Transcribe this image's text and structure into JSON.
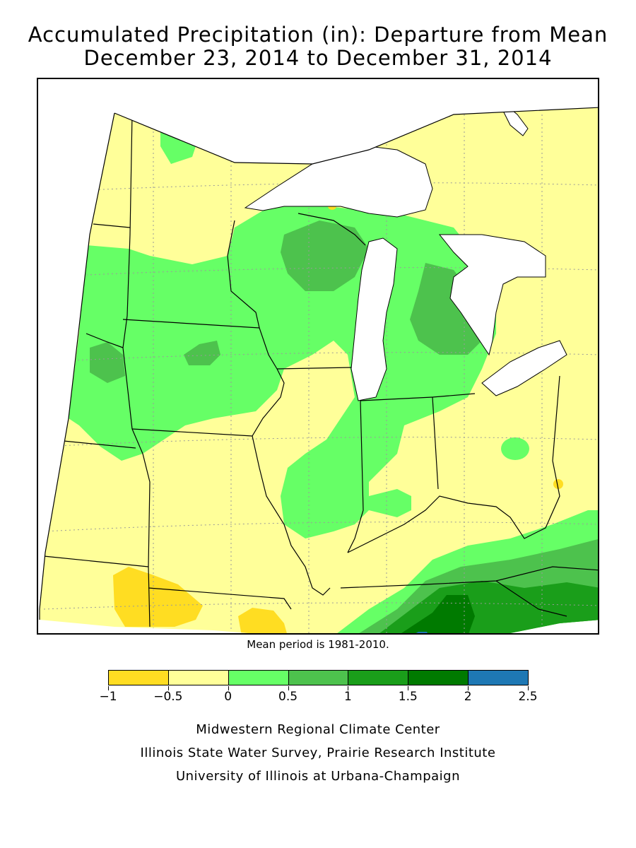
{
  "title_line1": "Accumulated Precipitation (in): Departure from Mean",
  "title_line2": "December 23, 2014 to December 31, 2014",
  "mean_period_note": "Mean period is 1981-2010.",
  "legend": {
    "bins": [
      {
        "from": "-1",
        "to": "-0.5",
        "color": "#FFDD22"
      },
      {
        "from": "-0.5",
        "to": "0",
        "color": "#FFFF99"
      },
      {
        "from": "0",
        "to": "0.5",
        "color": "#66FF66"
      },
      {
        "from": "0.5",
        "to": "1",
        "color": "#4DC24D"
      },
      {
        "from": "1",
        "to": "1.5",
        "color": "#1A9E1A"
      },
      {
        "from": "1.5",
        "to": "2",
        "color": "#007A00"
      },
      {
        "from": "2",
        "to": "2.5",
        "color": "#1E78B4"
      }
    ],
    "tick_labels": [
      "−1",
      "−0.5",
      "0",
      "0.5",
      "1",
      "1.5",
      "2",
      "2.5"
    ]
  },
  "credits": {
    "line1": "Midwestern Regional Climate Center",
    "line2": "Illinois State Water Survey, Prairie Research Institute",
    "line3": "University of Illinois at Urbana-Champaign"
  },
  "colors": {
    "lake_fill": "#ffffff",
    "boundary": "#000000",
    "grid": "#999999"
  }
}
